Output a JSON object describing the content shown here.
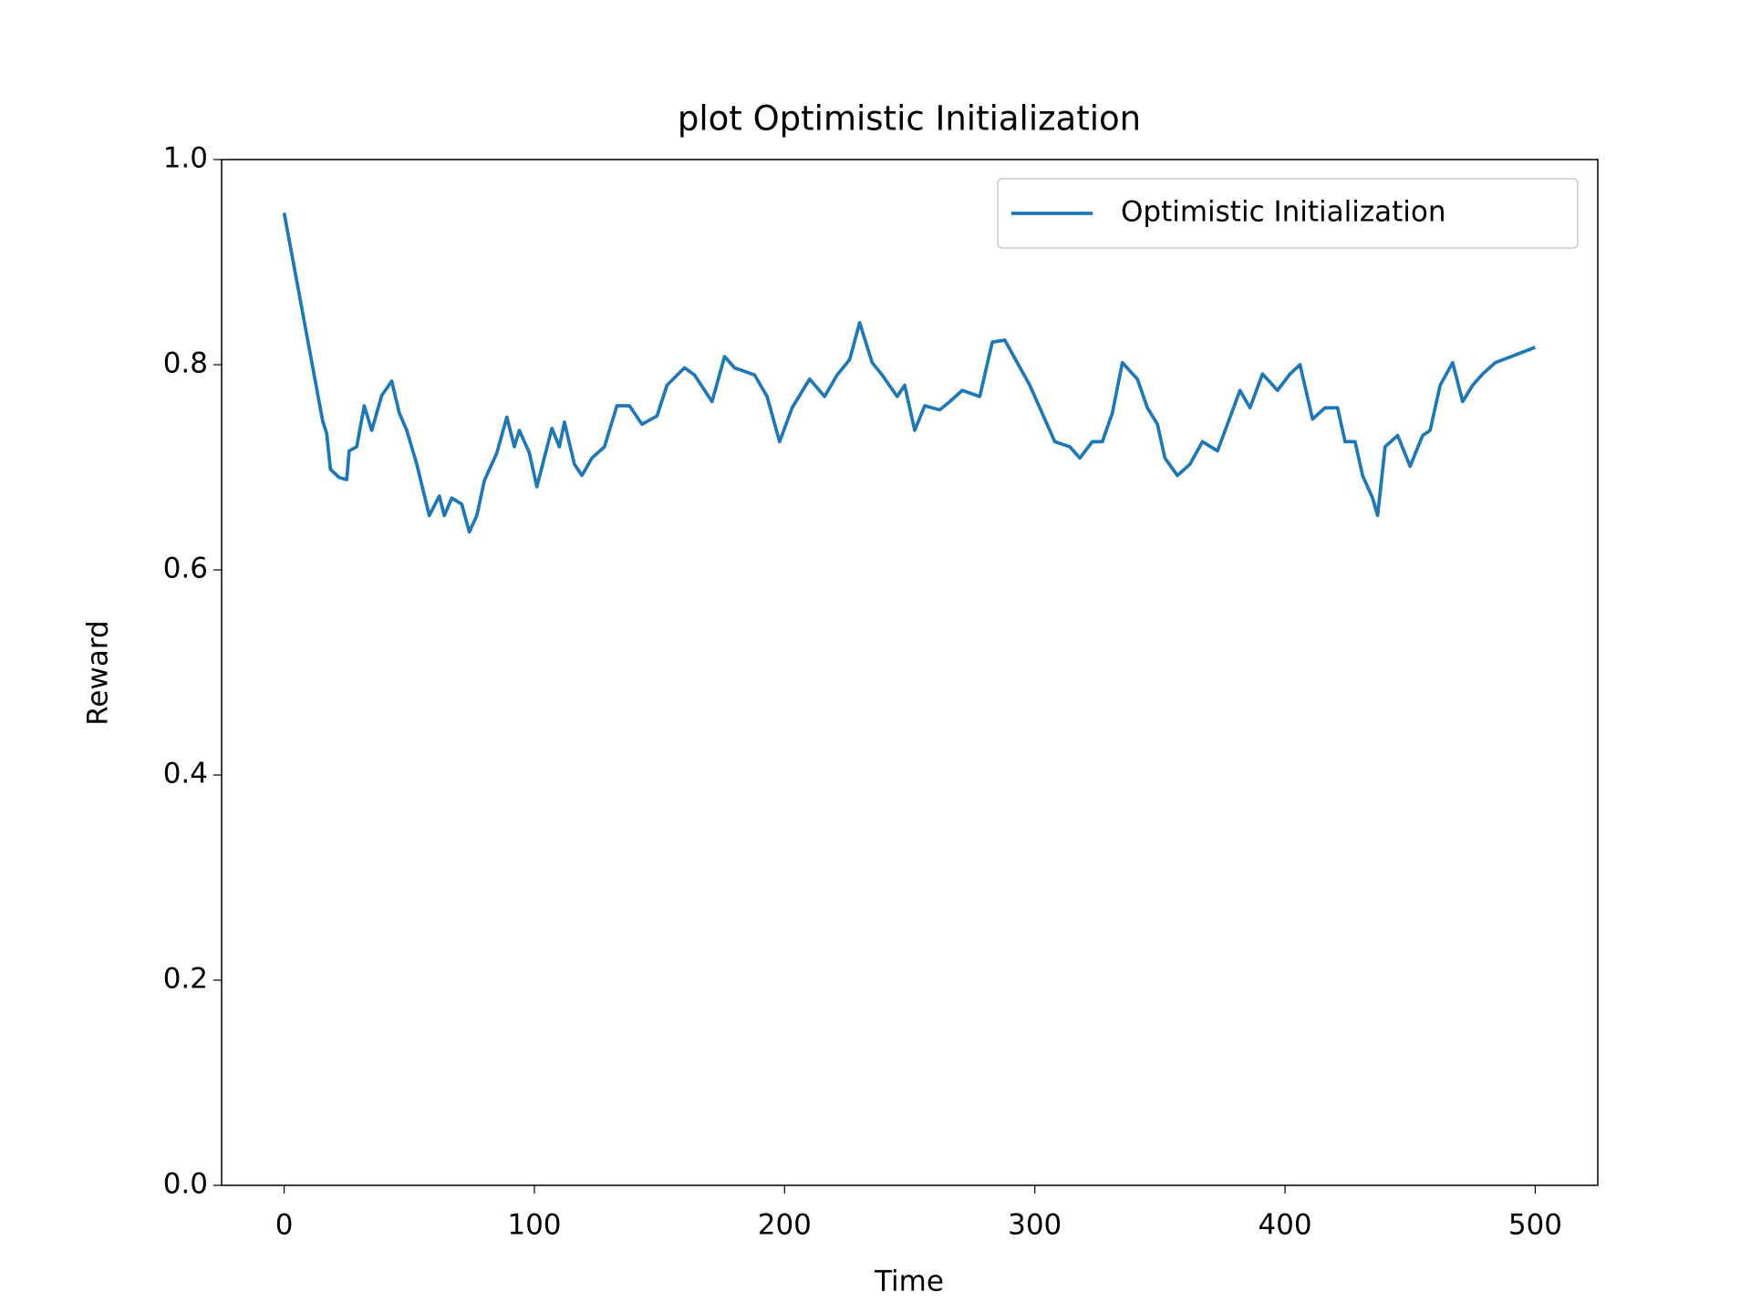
{
  "chart_data": {
    "type": "line",
    "title": "plot Optimistic Initialization",
    "xlabel": "Time",
    "ylabel": "Reward",
    "xlim": [
      -25,
      525
    ],
    "xticks": [
      0,
      100,
      200,
      300,
      400,
      500
    ],
    "ylim": [
      0,
      1
    ],
    "yticks": [
      {
        "value": 0,
        "label": "0.0"
      },
      0.2,
      0.4,
      0.6,
      0.8,
      {
        "value": 1,
        "label": "1.0"
      }
    ],
    "grid": false,
    "legend": "upper right",
    "x": [
      0,
      15.4,
      17,
      18.5,
      22,
      25,
      26,
      29,
      32,
      35,
      39,
      43,
      46,
      49,
      53,
      58,
      62,
      64,
      67,
      71,
      74,
      77,
      80,
      85,
      89,
      92,
      94,
      98,
      101,
      107,
      110,
      112,
      116,
      119,
      123,
      128,
      133,
      138,
      143,
      149,
      153,
      160,
      164,
      171,
      176,
      180,
      188,
      193,
      198,
      203,
      210,
      216,
      221,
      226,
      230,
      235,
      239,
      245,
      248,
      252,
      256,
      262,
      266,
      271,
      278,
      283,
      288,
      293,
      298,
      302,
      308,
      314,
      318,
      323,
      327,
      331,
      335,
      341,
      345,
      349,
      352,
      357,
      362,
      367,
      373,
      377,
      382,
      386,
      391,
      397,
      402,
      406,
      411,
      416,
      421,
      424,
      428,
      431,
      435,
      437,
      440,
      445,
      450,
      455,
      458,
      462,
      467,
      471,
      475,
      479,
      484,
      500
    ],
    "series": [
      {
        "name": "Optimistic Initialization",
        "color": "#1f77b4",
        "values": [
          0.948,
          0.745,
          0.733,
          0.698,
          0.69,
          0.688,
          0.716,
          0.72,
          0.76,
          0.736,
          0.77,
          0.784,
          0.753,
          0.736,
          0.703,
          0.653,
          0.672,
          0.653,
          0.67,
          0.664,
          0.637,
          0.653,
          0.687,
          0.714,
          0.749,
          0.72,
          0.736,
          0.714,
          0.681,
          0.738,
          0.72,
          0.744,
          0.703,
          0.692,
          0.709,
          0.72,
          0.76,
          0.76,
          0.742,
          0.75,
          0.78,
          0.797,
          0.79,
          0.764,
          0.808,
          0.797,
          0.79,
          0.769,
          0.725,
          0.758,
          0.786,
          0.769,
          0.79,
          0.805,
          0.841,
          0.802,
          0.79,
          0.769,
          0.78,
          0.736,
          0.76,
          0.756,
          0.764,
          0.775,
          0.769,
          0.822,
          0.824,
          0.802,
          0.78,
          0.758,
          0.725,
          0.72,
          0.709,
          0.725,
          0.725,
          0.753,
          0.802,
          0.786,
          0.758,
          0.742,
          0.709,
          0.692,
          0.703,
          0.725,
          0.716,
          0.742,
          0.775,
          0.758,
          0.791,
          0.775,
          0.791,
          0.8,
          0.747,
          0.758,
          0.758,
          0.725,
          0.725,
          0.692,
          0.67,
          0.653,
          0.72,
          0.731,
          0.701,
          0.731,
          0.736,
          0.78,
          0.802,
          0.764,
          0.78,
          0.791,
          0.802,
          0.817
        ]
      }
    ]
  }
}
